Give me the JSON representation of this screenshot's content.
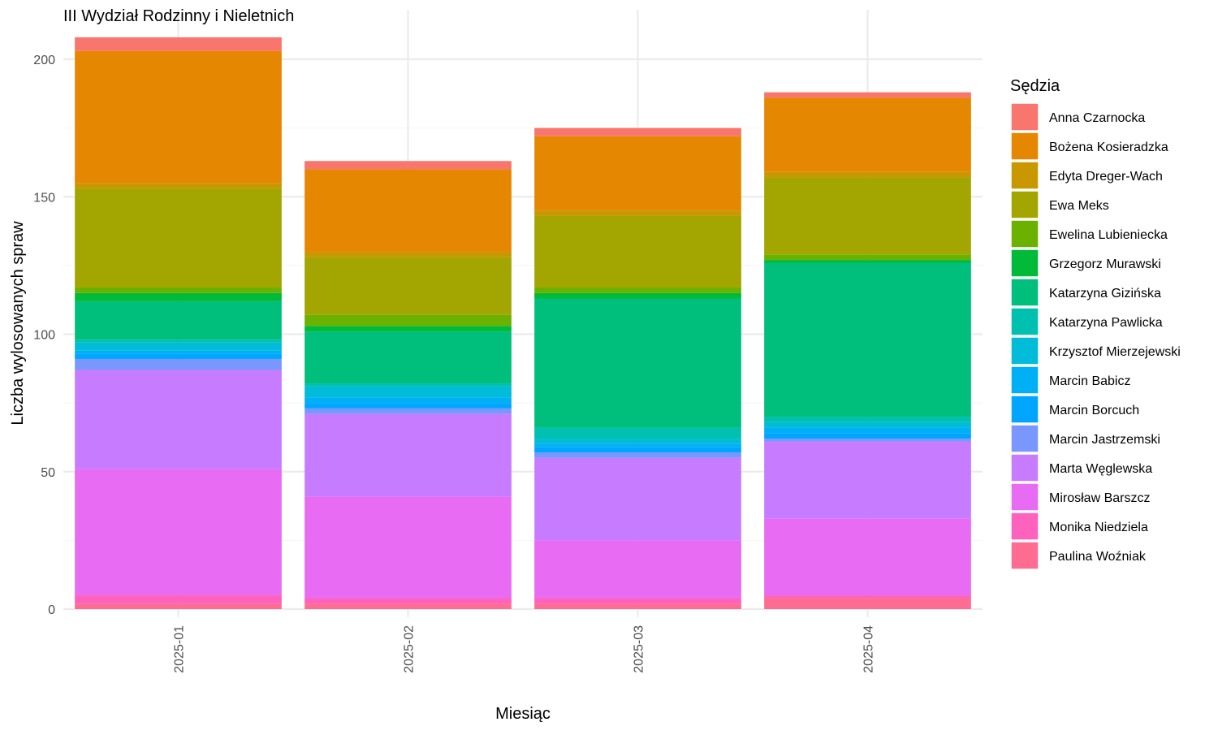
{
  "chart_data": {
    "type": "bar",
    "stacked": true,
    "title": "III Wydział Rodzinny i Nieletnich",
    "xlabel": "Miesiąc",
    "ylabel": "Liczba wylosowanych spraw",
    "ylim": [
      0,
      208
    ],
    "yticks": [
      0,
      50,
      100,
      150,
      200
    ],
    "grid": true,
    "legend_position": "right",
    "legend_title": "Sędzia",
    "categories": [
      "2025-01",
      "2025-02",
      "2025-03",
      "2025-04"
    ],
    "series": [
      {
        "name": "Anna Czarnocka",
        "color": "#F8766D",
        "values": [
          5,
          3,
          3,
          2
        ]
      },
      {
        "name": "Bożena Kosieradzka",
        "color": "#E58700",
        "values": [
          48,
          30,
          27,
          27
        ]
      },
      {
        "name": "Edyta Dreger-Wach",
        "color": "#C99800",
        "values": [
          2,
          2,
          2,
          2
        ]
      },
      {
        "name": "Ewa Meks",
        "color": "#A3A500",
        "values": [
          36,
          21,
          26,
          28
        ]
      },
      {
        "name": "Ewelina Lubieniecka",
        "color": "#6BB100",
        "values": [
          2,
          4,
          2,
          2
        ]
      },
      {
        "name": "Grzegorz Murawski",
        "color": "#00BA38",
        "values": [
          3,
          2,
          2,
          1
        ]
      },
      {
        "name": "Katarzyna Gizińska",
        "color": "#00BF7D",
        "values": [
          14,
          19,
          47,
          56
        ]
      },
      {
        "name": "Katarzyna Pawlicka",
        "color": "#00C0AF",
        "values": [
          1,
          1,
          4,
          2
        ]
      },
      {
        "name": "Krzysztof Mierzejewski",
        "color": "#00BCD8",
        "values": [
          3,
          4,
          2,
          2
        ]
      },
      {
        "name": "Marcin Babicz",
        "color": "#00B0F6",
        "values": [
          1,
          2,
          1,
          2
        ]
      },
      {
        "name": "Marcin Borcuch",
        "color": "#00A5FF",
        "values": [
          2,
          2,
          2,
          2
        ]
      },
      {
        "name": "Marcin Jastrzemski",
        "color": "#7997FF",
        "values": [
          4,
          2,
          2,
          1
        ]
      },
      {
        "name": "Marta Węglewska",
        "color": "#C77CFF",
        "values": [
          36,
          30,
          30,
          28
        ]
      },
      {
        "name": "Mirosław Barszcz",
        "color": "#E76BF3",
        "values": [
          46,
          37,
          21,
          28
        ]
      },
      {
        "name": "Monika Niedziela",
        "color": "#FF62BC",
        "values": [
          3,
          2,
          2,
          1
        ]
      },
      {
        "name": "Paulina Woźniak",
        "color": "#FF6C91",
        "values": [
          2,
          2,
          2,
          4
        ]
      }
    ]
  }
}
